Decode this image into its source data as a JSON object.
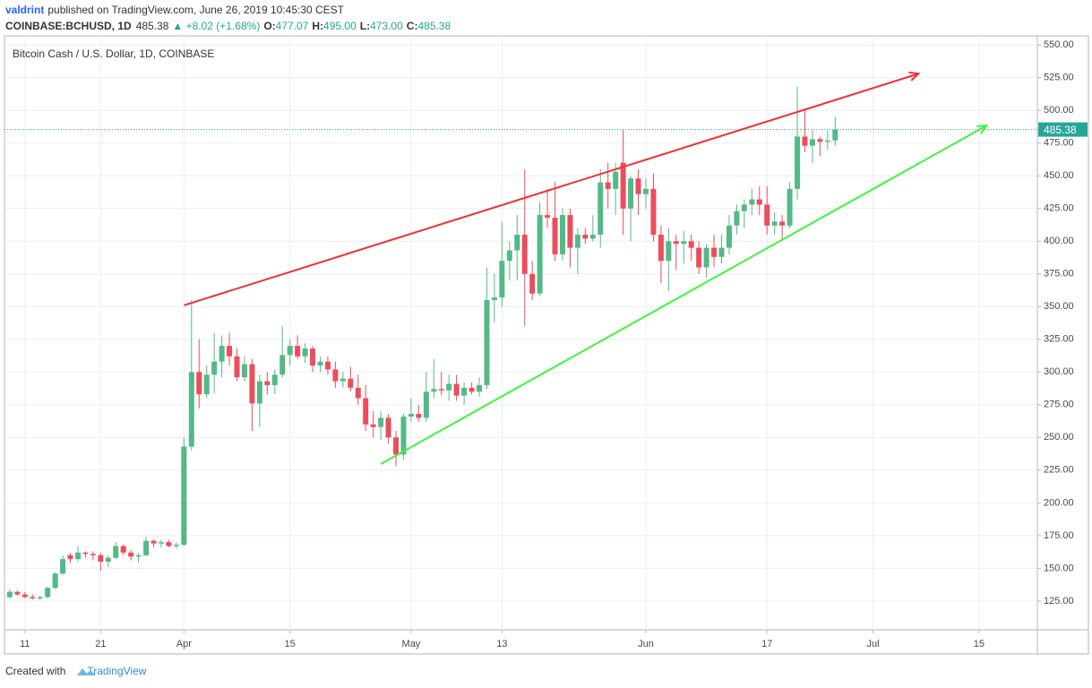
{
  "header": {
    "author": "valdrint",
    "published": "published on TradingView.com, June 26, 2019 10:45:30 CEST",
    "symbol": "COINBASE:BCHUSD, 1D",
    "price": "485.38",
    "change": "▲ +8.02 (+1.68%)",
    "ohlc": [
      {
        "label": "O:",
        "value": "477.07"
      },
      {
        "label": "H:",
        "value": "495.00"
      },
      {
        "label": "L:",
        "value": "473.00"
      },
      {
        "label": "C:",
        "value": "485.38"
      }
    ]
  },
  "footer": {
    "text": "Created with",
    "brand": "TradingView"
  },
  "chart_data": {
    "type": "candlestick",
    "title": "Bitcoin Cash / U.S. Dollar, 1D, COINBASE",
    "up_color": "#53b987",
    "down_color": "#eb4d5c",
    "last_price_color": "#26a69a",
    "grid": true,
    "x": [
      0,
      1,
      2,
      3,
      4,
      5,
      6,
      7,
      8,
      9,
      10,
      11,
      12,
      13,
      14,
      15,
      16,
      17,
      18,
      19,
      20,
      21,
      22,
      23,
      24,
      25,
      26,
      27,
      28,
      29,
      30,
      31,
      32,
      33,
      34,
      35,
      36,
      37,
      38,
      39,
      40,
      41,
      42,
      43,
      44,
      45,
      46,
      47,
      48,
      49,
      50,
      51,
      52,
      53,
      54,
      55,
      56,
      57,
      58,
      59,
      60,
      61,
      62,
      63,
      64,
      65,
      66,
      67,
      68,
      69,
      70,
      71,
      72,
      73,
      74,
      75,
      76,
      77,
      78,
      79,
      80,
      81,
      82,
      83,
      84,
      85,
      86,
      87,
      88,
      89,
      90,
      91,
      92,
      93,
      94,
      95,
      96,
      97,
      98,
      99,
      100,
      101,
      102,
      103,
      104,
      105,
      106,
      107,
      108,
      109
    ],
    "open": [
      128,
      132,
      130,
      128,
      127,
      128,
      135,
      146,
      160,
      157,
      162,
      161,
      160,
      155,
      158,
      167,
      162,
      159,
      160,
      171,
      169,
      170,
      167,
      168,
      243,
      300,
      283,
      298,
      308,
      320,
      312,
      296,
      306,
      276,
      293,
      290,
      298,
      313,
      320,
      312,
      318,
      305,
      308,
      302,
      293,
      295,
      288,
      280,
      260,
      258,
      265,
      250,
      237,
      266,
      268,
      265,
      285,
      287,
      286,
      291,
      282,
      288,
      285,
      290,
      355,
      357,
      385,
      393,
      405,
      375,
      360,
      420,
      418,
      390,
      420,
      395,
      405,
      402,
      405,
      445,
      440,
      460,
      425,
      448,
      436,
      440,
      405,
      385,
      400,
      398,
      400,
      395,
      380,
      395,
      388,
      395,
      412,
      423,
      428,
      432,
      428,
      412,
      415,
      412,
      440,
      480,
      473,
      478,
      476,
      477.07
    ],
    "high": [
      134,
      133,
      132,
      130,
      129,
      136,
      147,
      160,
      162,
      167,
      163,
      163,
      162,
      160,
      170,
      168,
      164,
      162,
      174,
      172,
      172,
      172,
      170,
      250,
      355,
      325,
      305,
      330,
      328,
      330,
      318,
      312,
      310,
      298,
      300,
      302,
      335,
      325,
      328,
      322,
      320,
      312,
      312,
      308,
      300,
      304,
      298,
      290,
      270,
      270,
      268,
      255,
      268,
      280,
      275,
      300,
      310,
      300,
      298,
      298,
      292,
      292,
      296,
      380,
      375,
      415,
      400,
      420,
      455,
      385,
      430,
      440,
      445,
      425,
      425,
      410,
      410,
      420,
      455,
      460,
      460,
      485,
      450,
      455,
      448,
      452,
      412,
      410,
      405,
      408,
      405,
      400,
      398,
      405,
      405,
      420,
      428,
      432,
      440,
      442,
      442,
      422,
      420,
      445,
      518,
      500,
      485,
      480,
      485,
      495
    ],
    "low": [
      127,
      129,
      127,
      126,
      126,
      127,
      134,
      145,
      154,
      155,
      158,
      156,
      148,
      151,
      157,
      160,
      156,
      154,
      159,
      166,
      166,
      166,
      165,
      167,
      240,
      272,
      280,
      284,
      296,
      305,
      293,
      293,
      255,
      258,
      283,
      283,
      296,
      305,
      310,
      307,
      300,
      300,
      298,
      288,
      288,
      285,
      275,
      255,
      250,
      248,
      245,
      228,
      233,
      262,
      262,
      262,
      280,
      282,
      278,
      278,
      275,
      283,
      281,
      287,
      338,
      350,
      370,
      370,
      335,
      355,
      358,
      410,
      385,
      385,
      380,
      375,
      398,
      400,
      395,
      425,
      420,
      405,
      400,
      420,
      425,
      400,
      368,
      362,
      378,
      383,
      385,
      375,
      372,
      380,
      383,
      390,
      405,
      410,
      420,
      420,
      405,
      405,
      400,
      410,
      432,
      468,
      460,
      465,
      470,
      473
    ],
    "close": [
      132,
      130,
      128,
      127,
      128,
      135,
      146,
      157,
      157,
      162,
      161,
      160,
      155,
      158,
      167,
      162,
      159,
      160,
      171,
      169,
      170,
      167,
      168,
      243,
      300,
      283,
      298,
      308,
      320,
      312,
      296,
      306,
      276,
      293,
      290,
      298,
      313,
      320,
      312,
      318,
      305,
      308,
      302,
      293,
      295,
      288,
      280,
      260,
      258,
      265,
      250,
      237,
      266,
      268,
      265,
      285,
      287,
      286,
      291,
      282,
      288,
      285,
      290,
      355,
      357,
      385,
      393,
      405,
      375,
      360,
      420,
      418,
      390,
      420,
      395,
      405,
      402,
      405,
      445,
      440,
      453,
      425,
      448,
      436,
      440,
      405,
      385,
      400,
      398,
      400,
      395,
      380,
      395,
      388,
      395,
      412,
      423,
      428,
      432,
      428,
      412,
      415,
      412,
      440,
      480,
      473,
      478,
      476,
      477,
      485.38
    ],
    "trendlines": [
      {
        "color": "#f23030",
        "x": [
          23,
          120
        ],
        "y": [
          351,
          528
        ]
      },
      {
        "color": "#3ef53a",
        "x": [
          49,
          129
        ],
        "y": [
          229.7,
          488.4
        ]
      }
    ],
    "xlim": [
      -0.7,
      135.7
    ],
    "xticks": [
      {
        "value": 2,
        "label": "11"
      },
      {
        "value": 12,
        "label": "21"
      },
      {
        "value": 23,
        "label": "Apr"
      },
      {
        "value": 37,
        "label": "15"
      },
      {
        "value": 53,
        "label": "May"
      },
      {
        "value": 65,
        "label": "13"
      },
      {
        "value": 84,
        "label": "Jun"
      },
      {
        "value": 100,
        "label": "17"
      },
      {
        "value": 114,
        "label": "Jul"
      },
      {
        "value": 128,
        "label": "15"
      }
    ],
    "ylim": [
      103,
      557
    ],
    "yticks": [
      {
        "value": 125,
        "label": "125.00"
      },
      {
        "value": 150,
        "label": "150.00"
      },
      {
        "value": 175,
        "label": "175.00"
      },
      {
        "value": 200,
        "label": "200.00"
      },
      {
        "value": 225,
        "label": "225.00"
      },
      {
        "value": 250,
        "label": "250.00"
      },
      {
        "value": 275,
        "label": "275.00"
      },
      {
        "value": 300,
        "label": "300.00"
      },
      {
        "value": 325,
        "label": "325.00"
      },
      {
        "value": 350,
        "label": "350.00"
      },
      {
        "value": 375,
        "label": "375.00"
      },
      {
        "value": 400,
        "label": "400.00"
      },
      {
        "value": 425,
        "label": "425.00"
      },
      {
        "value": 450,
        "label": "450.00"
      },
      {
        "value": 475,
        "label": "475.00"
      },
      {
        "value": 500,
        "label": "500.00"
      },
      {
        "value": 525,
        "label": "525.00"
      },
      {
        "value": 550,
        "label": "550.00"
      }
    ]
  }
}
